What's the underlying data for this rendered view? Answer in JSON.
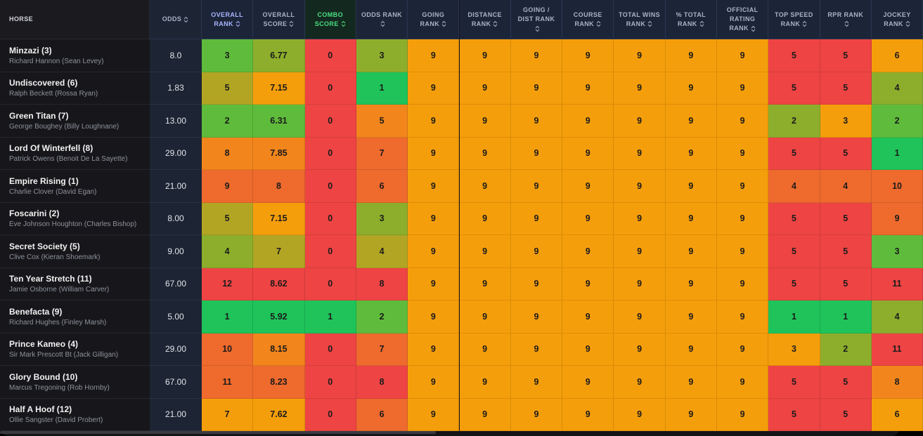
{
  "table": {
    "columns": [
      "HORSE",
      "ODDS",
      "OVERALL RANK",
      "OVERALL SCORE",
      "COMBO SCORE",
      "ODDS RANK",
      "GOING RANK",
      "DISTANCE RANK",
      "GOING / DIST RANK",
      "COURSE RANK",
      "TOTAL WINS RANK",
      "% TOTAL RANK",
      "OFFICIAL RATING RANK",
      "TOP SPEED RANK",
      "RPR RANK",
      "JOCKEY RANK"
    ],
    "rows": [
      {
        "horse": "Minzazi (3)",
        "trainer": "Richard Hannon (Sean Levey)",
        "odds": "8.0",
        "cells": [
          3,
          6.77,
          0,
          3,
          9,
          9,
          9,
          9,
          9,
          9,
          9,
          5,
          5,
          6
        ]
      },
      {
        "horse": "Undiscovered (6)",
        "trainer": "Ralph Beckett (Rossa Ryan)",
        "odds": "1.83",
        "cells": [
          5,
          7.15,
          0,
          1,
          9,
          9,
          9,
          9,
          9,
          9,
          9,
          5,
          5,
          4
        ]
      },
      {
        "horse": "Green Titan (7)",
        "trainer": "George Boughey (Billy Loughnane)",
        "odds": "13.00",
        "cells": [
          2,
          6.31,
          0,
          5,
          9,
          9,
          9,
          9,
          9,
          9,
          9,
          2,
          3,
          2
        ]
      },
      {
        "horse": "Lord Of Winterfell (8)",
        "trainer": "Patrick Owens (Benoit De La Sayette)",
        "odds": "29.00",
        "cells": [
          8,
          7.85,
          0,
          7,
          9,
          9,
          9,
          9,
          9,
          9,
          9,
          5,
          5,
          1
        ]
      },
      {
        "horse": "Empire Rising (1)",
        "trainer": "Charlie Clover (David Egan)",
        "odds": "21.00",
        "cells": [
          9,
          8,
          0,
          6,
          9,
          9,
          9,
          9,
          9,
          9,
          9,
          4,
          4,
          10
        ]
      },
      {
        "horse": "Foscarini (2)",
        "trainer": "Eve Johnson Houghton (Charles Bishop)",
        "odds": "8.00",
        "cells": [
          5,
          7.15,
          0,
          3,
          9,
          9,
          9,
          9,
          9,
          9,
          9,
          5,
          5,
          9
        ]
      },
      {
        "horse": "Secret Society (5)",
        "trainer": "Clive Cox (Kieran Shoemark)",
        "odds": "9.00",
        "cells": [
          4,
          7,
          0,
          4,
          9,
          9,
          9,
          9,
          9,
          9,
          9,
          5,
          5,
          3
        ]
      },
      {
        "horse": "Ten Year Stretch (11)",
        "trainer": "Jamie Osborne (William Carver)",
        "odds": "67.00",
        "cells": [
          12,
          8.62,
          0,
          8,
          9,
          9,
          9,
          9,
          9,
          9,
          9,
          5,
          5,
          11
        ]
      },
      {
        "horse": "Benefacta (9)",
        "trainer": "Richard Hughes (Finley Marsh)",
        "odds": "5.00",
        "cells": [
          1,
          5.92,
          1,
          2,
          9,
          9,
          9,
          9,
          9,
          9,
          9,
          1,
          1,
          4
        ]
      },
      {
        "horse": "Prince Kameo (4)",
        "trainer": "Sir Mark Prescott Bt (Jack Gilligan)",
        "odds": "29.00",
        "cells": [
          10,
          8.15,
          0,
          7,
          9,
          9,
          9,
          9,
          9,
          9,
          9,
          3,
          2,
          11
        ]
      },
      {
        "horse": "Glory Bound (10)",
        "trainer": "Marcus Tregoning (Rob Hornby)",
        "odds": "67.00",
        "cells": [
          11,
          8.23,
          0,
          8,
          9,
          9,
          9,
          9,
          9,
          9,
          9,
          5,
          5,
          8
        ]
      },
      {
        "horse": "Half A Hoof (12)",
        "trainer": "Ollie Sangster (David Probert)",
        "odds": "21.00",
        "cells": [
          7,
          7.62,
          0,
          6,
          9,
          9,
          9,
          9,
          9,
          9,
          9,
          5,
          5,
          6
        ]
      }
    ]
  }
}
